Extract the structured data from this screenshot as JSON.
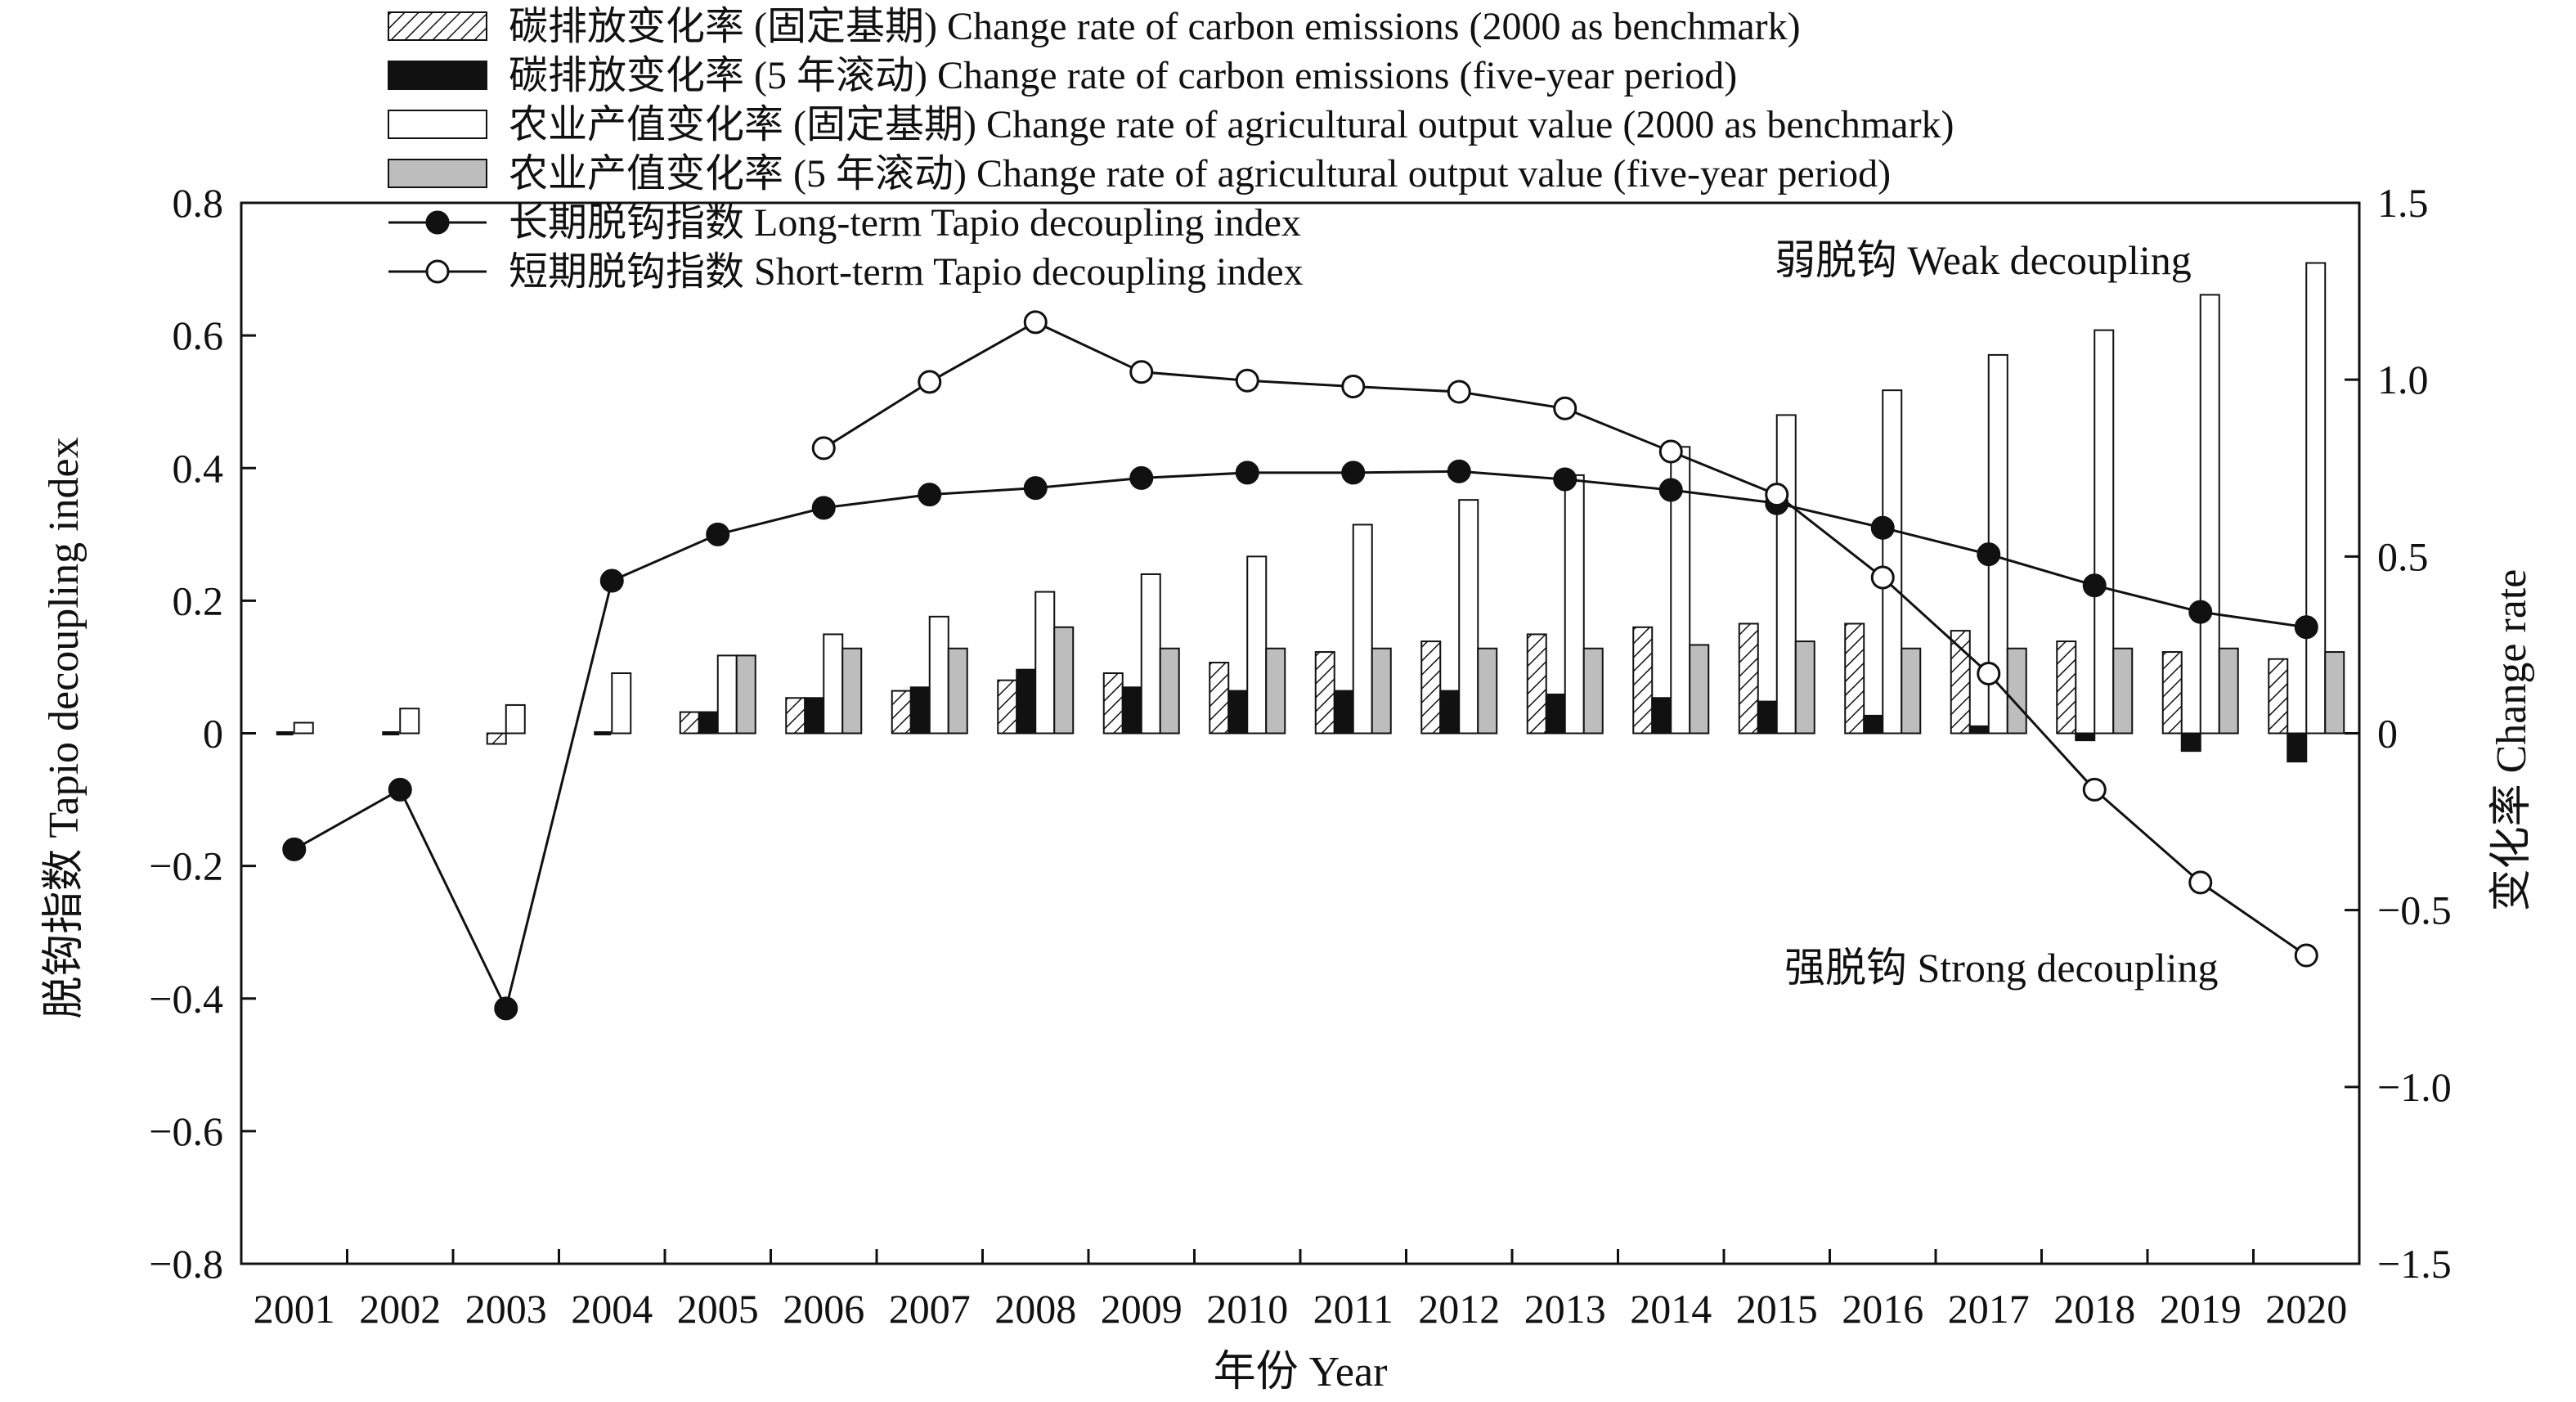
{
  "chart_data": {
    "type": "bar",
    "years": [
      "2001",
      "2002",
      "2003",
      "2004",
      "2005",
      "2006",
      "2007",
      "2008",
      "2009",
      "2010",
      "2011",
      "2012",
      "2013",
      "2014",
      "2015",
      "2016",
      "2017",
      "2018",
      "2019",
      "2020"
    ],
    "xlabel": "年份 Year",
    "ylabel_left": "脱钩指数 Tapio decoupling index",
    "ylabel_right": "变化率 Change rate",
    "ylim_left": [
      -0.8,
      0.8
    ],
    "ylim_right": [
      -1.5,
      1.5
    ],
    "yticks_left": [
      "0.8",
      "0.6",
      "0.4",
      "0.2",
      "0",
      "−0.2",
      "−0.4",
      "−0.6",
      "−0.8"
    ],
    "yticks_right": [
      "1.5",
      "1.0",
      "0.5",
      "0",
      "−0.5",
      "−1.0",
      "−1.5"
    ],
    "grid": false,
    "legend_position": "top-left",
    "bar_series": [
      {
        "name": "碳排放变化率 (固定基期) Change rate of carbon emissions (2000 as benchmark)",
        "fill": "hatch",
        "values": [
          0.0,
          0.0,
          -0.03,
          0.0,
          0.06,
          0.1,
          0.12,
          0.15,
          0.17,
          0.2,
          0.23,
          0.26,
          0.28,
          0.3,
          0.31,
          0.31,
          0.29,
          0.26,
          0.23,
          0.21
        ]
      },
      {
        "name": "碳排放变化率 (5 年滚动) Change rate of carbon emissions (five-year period)",
        "fill": "#111111",
        "values": [
          null,
          null,
          null,
          null,
          0.06,
          0.1,
          0.13,
          0.18,
          0.13,
          0.12,
          0.12,
          0.12,
          0.11,
          0.1,
          0.09,
          0.05,
          0.02,
          -0.02,
          -0.05,
          -0.08
        ]
      },
      {
        "name": "农业产值变化率 (固定基期) Change rate of agricultural output value (2000 as benchmark)",
        "fill": "#ffffff",
        "values": [
          0.03,
          0.07,
          0.08,
          0.17,
          0.22,
          0.28,
          0.33,
          0.4,
          0.45,
          0.5,
          0.59,
          0.66,
          0.73,
          0.81,
          0.9,
          0.97,
          1.07,
          1.14,
          1.24,
          1.33
        ]
      },
      {
        "name": "农业产值变化率 (5 年滚动) Change rate of agricultural output value (five-year period)",
        "fill": "#bdbdbd",
        "values": [
          null,
          null,
          null,
          null,
          0.22,
          0.24,
          0.24,
          0.3,
          0.24,
          0.24,
          0.24,
          0.24,
          0.24,
          0.25,
          0.26,
          0.24,
          0.24,
          0.24,
          0.24,
          0.23
        ]
      }
    ],
    "line_series": [
      {
        "name": "长期脱钩指数 Long-term Tapio decoupling index",
        "marker": "filled",
        "values": [
          -0.175,
          -0.085,
          -0.415,
          0.23,
          0.3,
          0.34,
          0.36,
          0.37,
          0.385,
          0.393,
          0.393,
          0.395,
          0.383,
          0.367,
          0.347,
          0.31,
          0.27,
          0.223,
          0.183,
          0.16
        ]
      },
      {
        "name": "短期脱钩指数 Short-term Tapio decoupling index",
        "marker": "open",
        "values": [
          null,
          null,
          null,
          null,
          null,
          0.43,
          0.53,
          0.62,
          0.545,
          0.532,
          0.523,
          0.515,
          0.49,
          0.425,
          0.36,
          0.235,
          0.09,
          -0.085,
          -0.225,
          -0.335
        ]
      }
    ],
    "annotations": [
      "弱脱钩 Weak decoupling",
      "强脱钩 Strong decoupling"
    ]
  }
}
